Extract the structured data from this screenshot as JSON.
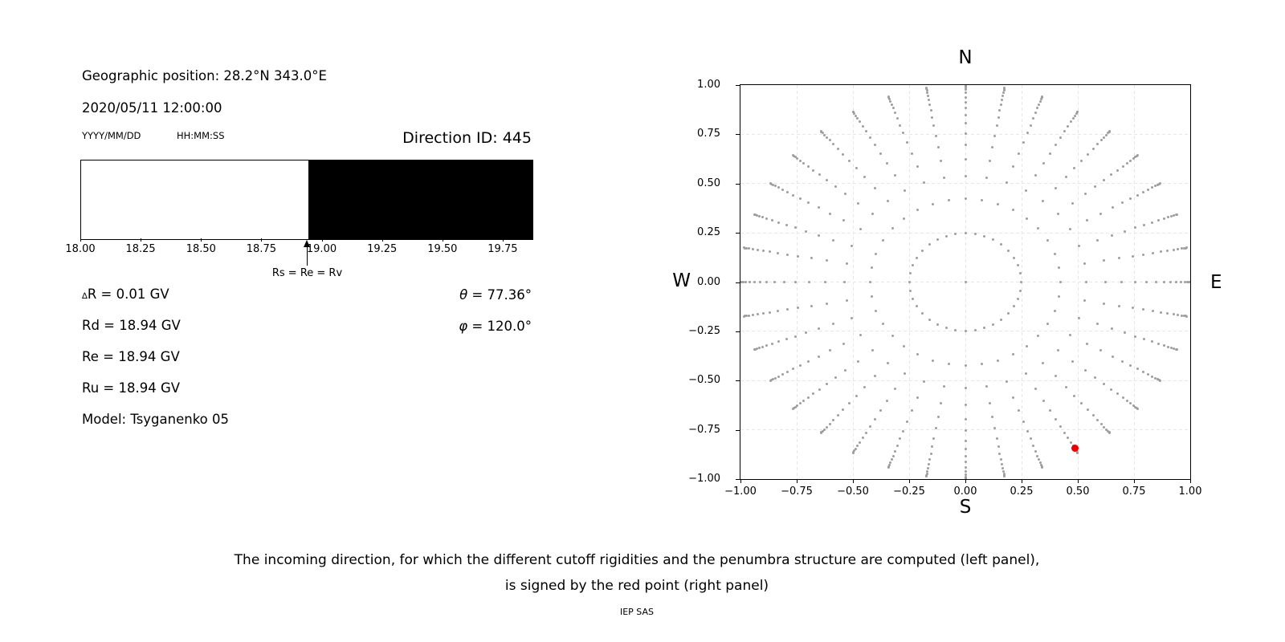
{
  "left_panel": {
    "geo": "Geographic position: 28.2°N 343.0°E",
    "datetime": "2020/05/11 12:00:00",
    "date_format": "YYYY/MM/DD",
    "time_format": "HH:MM:SS",
    "direction_id": "Direction ID: 445",
    "arrow_label": "Rs = Re = Rv",
    "delta_row": {
      "delta": "∆",
      "rest": "R = 0.01 GV"
    },
    "rigidity_rows": [
      "Rd = 18.94 GV",
      "Re = 18.94 GV",
      "Ru = 18.94 GV"
    ],
    "theta_row": {
      "sym": "θ",
      "rest": " = 77.36°"
    },
    "phi_row": {
      "sym": "φ",
      "rest": " = 120.0°"
    },
    "model": "Model: Tsyganenko 05"
  },
  "right_panel": {
    "north": "N",
    "south": "S",
    "west": "W",
    "east": "E"
  },
  "caption": {
    "line1": "The incoming direction, for which the different cutoff rigidities and the penumbra structure are computed (left panel),",
    "line2": "is signed by the red point (right panel)",
    "credit": "IEP SAS"
  },
  "chart_data": [
    {
      "type": "bar",
      "subtype": "penumbra-band",
      "xlim": [
        18.0,
        19.87
      ],
      "xtick_values": [
        18.0,
        18.25,
        18.5,
        18.75,
        19.0,
        19.25,
        19.5,
        19.75
      ],
      "xtick_labels": [
        "18.00",
        "18.25",
        "18.50",
        "18.75",
        "19.00",
        "19.25",
        "19.50",
        "19.75"
      ],
      "bands": [
        {
          "from": 18.0,
          "to": 18.94,
          "state": "allowed",
          "color": "#ffffff"
        },
        {
          "from": 18.94,
          "to": 19.87,
          "state": "forbidden",
          "color": "#000000"
        }
      ],
      "marker": {
        "x": 18.94,
        "label": "Rs = Re = Rv"
      },
      "values": {
        "delta_R_GV": 0.01,
        "Rd_GV": 18.94,
        "Re_GV": 18.94,
        "Ru_GV": 18.94,
        "theta_deg": 77.36,
        "phi_deg": 120.0,
        "model": "Tsyganenko 05"
      }
    },
    {
      "type": "scatter",
      "xlim": [
        -1,
        1
      ],
      "ylim": [
        -1,
        1
      ],
      "xtick_values": [
        -1,
        -0.75,
        -0.5,
        -0.25,
        0,
        0.25,
        0.5,
        0.75,
        1
      ],
      "xtick_labels": [
        "−1.00",
        "−0.75",
        "−0.50",
        "−0.25",
        "0.00",
        "0.25",
        "0.50",
        "0.75",
        "1.00"
      ],
      "ytick_values": [
        1,
        0.75,
        0.5,
        0.25,
        0,
        -0.25,
        -0.5,
        -0.75,
        -1
      ],
      "ytick_labels": [
        "1.00",
        "0.75",
        "0.50",
        "0.25",
        "0.00",
        "−0.25",
        "−0.50",
        "−0.75",
        "−1.00"
      ],
      "grid": true,
      "grid_color": "#e7e7e7",
      "cardinal_labels": {
        "top": "N",
        "bottom": "S",
        "left": "W",
        "right": "E"
      },
      "series": [
        {
          "name": "direction-grid",
          "kind": "radial-grid",
          "color": "#9e9e9e",
          "marker_px": 3,
          "azimuth_start_deg": 0,
          "azimuth_step_deg": 10,
          "azimuth_count": 36,
          "ring_radii": [
            0.248,
            0.4227,
            0.5367,
            0.6242,
            0.6953,
            0.7546,
            0.8047,
            0.8472,
            0.8833,
            0.9137,
            0.9391,
            0.9596,
            0.9758,
            0.9877,
            0.9956,
            0.9995
          ],
          "center_point": true
        },
        {
          "name": "selected-direction",
          "kind": "points",
          "color": "#ee0000",
          "marker_px": 9,
          "points": [
            {
              "x": 0.4879,
              "y": -0.845
            }
          ]
        }
      ]
    }
  ]
}
